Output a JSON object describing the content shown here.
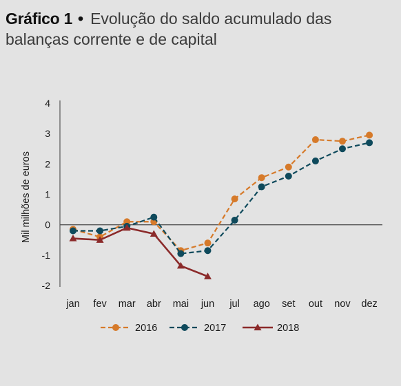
{
  "figure": {
    "label": "Gráfico 1",
    "bullet": "•",
    "title": "Evolução do saldo acumulado das balanças corrente e de capital"
  },
  "chart_data": {
    "type": "line",
    "ylabel": "Mil milhões de euros",
    "xlabel": "",
    "ylim": [
      -2,
      4
    ],
    "yticks": [
      -2,
      -1,
      0,
      1,
      2,
      3,
      4
    ],
    "ytick_labels": [
      "-2",
      "-1",
      "0",
      "1",
      "2",
      "3",
      "4"
    ],
    "categories": [
      "jan",
      "fev",
      "mar",
      "abr",
      "mai",
      "jun",
      "jul",
      "ago",
      "set",
      "out",
      "nov",
      "dez"
    ],
    "grid": false,
    "legend_position": "bottom",
    "series": [
      {
        "name": "2016",
        "color": "#d67a2a",
        "line_style": "dashed",
        "marker": "circle",
        "values": [
          -0.15,
          -0.4,
          0.1,
          0.1,
          -0.85,
          -0.6,
          0.85,
          1.55,
          1.9,
          2.8,
          2.75,
          2.95
        ]
      },
      {
        "name": "2017",
        "color": "#0f4a5c",
        "line_style": "dashed",
        "marker": "circle",
        "values": [
          -0.2,
          -0.2,
          -0.05,
          0.25,
          -0.95,
          -0.85,
          0.15,
          1.25,
          1.6,
          2.1,
          2.5,
          2.7
        ]
      },
      {
        "name": "2018",
        "color": "#8b2a2a",
        "line_style": "solid",
        "marker": "triangle",
        "values": [
          -0.45,
          -0.5,
          -0.1,
          -0.3,
          -1.35,
          -1.7,
          null,
          null,
          null,
          null,
          null,
          null
        ]
      }
    ]
  }
}
